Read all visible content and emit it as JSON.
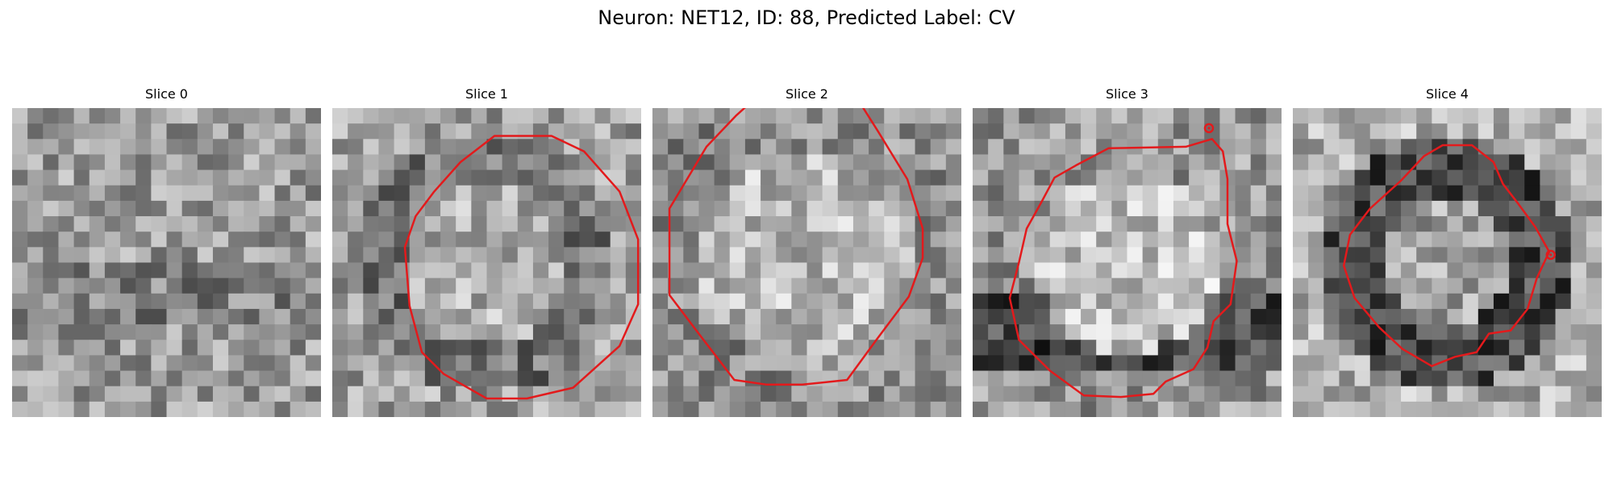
{
  "figure": {
    "title": "Neuron: NET12, ID: 88, Predicted Label: CV"
  },
  "colors": {
    "contour": "#e31a1c",
    "background": "#ffffff"
  },
  "slices": [
    {
      "label": "Slice 0",
      "has_contour": false,
      "contour": [],
      "marker": null,
      "seed": 11,
      "tone": "noise"
    },
    {
      "label": "Slice 1",
      "has_contour": true,
      "contour": [
        [
          10.5,
          1.8
        ],
        [
          14.2,
          1.8
        ],
        [
          16.3,
          2.8
        ],
        [
          18.6,
          5.4
        ],
        [
          19.8,
          8.5
        ],
        [
          19.8,
          12.7
        ],
        [
          18.6,
          15.4
        ],
        [
          15.6,
          18.1
        ],
        [
          12.6,
          18.8
        ],
        [
          10,
          18.8
        ],
        [
          7.2,
          17.2
        ],
        [
          5.8,
          15.8
        ],
        [
          5,
          12.8
        ],
        [
          4.7,
          9
        ],
        [
          5.4,
          7
        ],
        [
          6.6,
          5.4
        ],
        [
          8.3,
          3.5
        ]
      ],
      "marker": null,
      "seed": 23,
      "tone": "ring"
    },
    {
      "label": "Slice 2",
      "has_contour": true,
      "contour": [
        [
          7.5,
          -1.4
        ],
        [
          12.4,
          -1.4
        ],
        [
          13.4,
          -0.4
        ],
        [
          14.6,
          1.5
        ],
        [
          16.5,
          4.6
        ],
        [
          17.5,
          7.8
        ],
        [
          17.5,
          9.7
        ],
        [
          16.6,
          12.2
        ],
        [
          14.5,
          15
        ],
        [
          12.6,
          17.6
        ],
        [
          9.7,
          17.9
        ],
        [
          7.4,
          17.9
        ],
        [
          5.3,
          17.6
        ],
        [
          3,
          14.6
        ],
        [
          1.1,
          12.1
        ],
        [
          1.1,
          6.5
        ],
        [
          3.5,
          2.5
        ],
        [
          5.4,
          0.5
        ]
      ],
      "marker": null,
      "seed": 37,
      "tone": "blob"
    },
    {
      "label": "Slice 3",
      "has_contour": true,
      "contour": [
        [
          6.7,
          3.7
        ],
        [
          8.8,
          2.6
        ],
        [
          13.8,
          2.5
        ],
        [
          15.5,
          2
        ],
        [
          16.2,
          2.8
        ],
        [
          16.5,
          4.6
        ],
        [
          16.5,
          7.5
        ],
        [
          17.1,
          9.9
        ],
        [
          16.7,
          12.7
        ],
        [
          15.6,
          13.8
        ],
        [
          15.2,
          15.5
        ],
        [
          14.3,
          16.9
        ],
        [
          12.5,
          17.7
        ],
        [
          11.7,
          18.5
        ],
        [
          9.6,
          18.7
        ],
        [
          7.2,
          18.6
        ],
        [
          5,
          17
        ],
        [
          3,
          15
        ],
        [
          2.4,
          12.3
        ],
        [
          3,
          10
        ],
        [
          3.5,
          7.8
        ],
        [
          4.5,
          6
        ],
        [
          5.3,
          4.5
        ]
      ],
      "marker": [
        15.3,
        1.3
      ],
      "seed": 51,
      "tone": "dark-edge"
    },
    {
      "label": "Slice 4",
      "has_contour": true,
      "contour": [
        [
          9.7,
          2.4
        ],
        [
          11.6,
          2.4
        ],
        [
          13,
          3.5
        ],
        [
          13.6,
          4.9
        ],
        [
          14.6,
          6.2
        ],
        [
          15.7,
          7.7
        ],
        [
          16.6,
          9.3
        ],
        [
          15.8,
          11
        ],
        [
          15.2,
          13
        ],
        [
          14.1,
          14.4
        ],
        [
          12.7,
          14.6
        ],
        [
          11.9,
          15.8
        ],
        [
          10.5,
          16.1
        ],
        [
          9,
          16.7
        ],
        [
          7.1,
          15.6
        ],
        [
          5.6,
          14.2
        ],
        [
          4,
          12.3
        ],
        [
          3.3,
          10.2
        ],
        [
          3.7,
          8.2
        ],
        [
          5,
          6.5
        ],
        [
          7,
          4.7
        ],
        [
          8.5,
          3.1
        ]
      ],
      "marker": [
        16.7,
        9.5
      ],
      "seed": 68,
      "tone": "dark-ring"
    }
  ]
}
